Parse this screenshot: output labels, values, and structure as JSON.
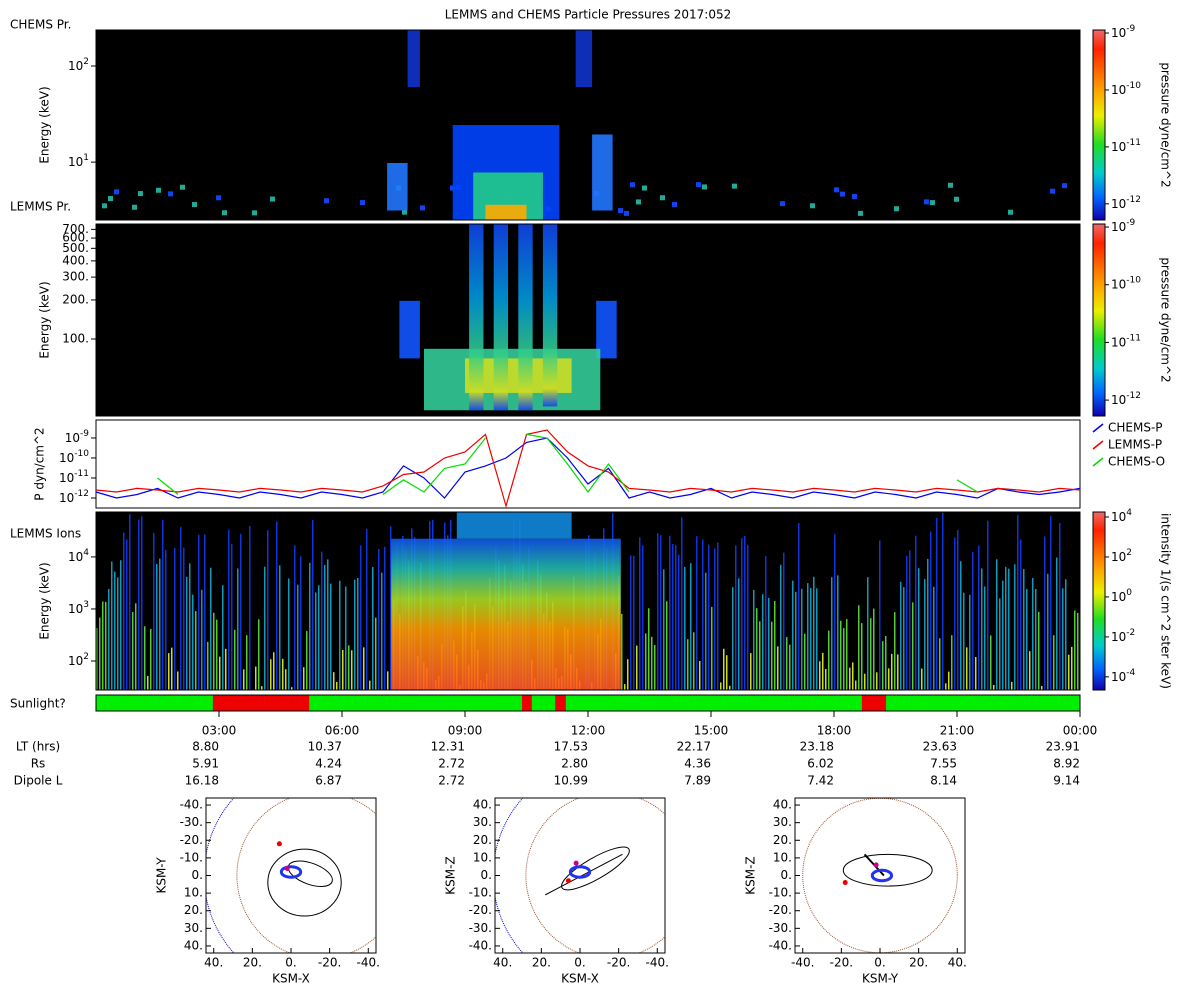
{
  "title": "LEMMS and CHEMS Particle Pressures  2017:052",
  "time_axis": {
    "xlim": [
      0,
      24
    ],
    "xticks": [
      {
        "value": 3,
        "label": "03:00"
      },
      {
        "value": 6,
        "label": "06:00"
      },
      {
        "value": 9,
        "label": "09:00"
      },
      {
        "value": 12,
        "label": "12:00"
      },
      {
        "value": 15,
        "label": "15:00"
      },
      {
        "value": 18,
        "label": "18:00"
      },
      {
        "value": 21,
        "label": "21:00"
      },
      {
        "value": 24,
        "label": "00:00"
      }
    ]
  },
  "ephemeris": [
    {
      "label": "LT (hrs)",
      "values": [
        "8.80",
        "10.37",
        "12.31",
        "17.53",
        "22.17",
        "23.18",
        "23.63",
        "23.91"
      ]
    },
    {
      "label": "Rs",
      "values": [
        "5.91",
        "4.24",
        "2.72",
        "2.80",
        "4.36",
        "6.02",
        "7.55",
        "8.92"
      ]
    },
    {
      "label": "Dipole L",
      "values": [
        "16.18",
        "6.87",
        "2.72",
        "10.99",
        "7.89",
        "7.42",
        "8.14",
        "9.14"
      ]
    }
  ],
  "chart_data": [
    {
      "type": "spectrogram",
      "label": "CHEMS Pr.",
      "ylabel": "Energy (keV)",
      "log_y": true,
      "ylim": [
        2.5,
        237
      ],
      "yticks": [
        {
          "value": 10,
          "base": "10",
          "exp": "1"
        },
        {
          "value": 100,
          "base": "10",
          "exp": "2"
        }
      ],
      "colorbar": {
        "label": "pressure dyne/cm^2",
        "lim": [
          5.2e-13,
          1.13e-09
        ],
        "ticks": [
          {
            "value": 1e-09,
            "base": "10",
            "exp": "-9"
          },
          {
            "value": 1e-10,
            "base": "10",
            "exp": "-10"
          },
          {
            "value": 1e-11,
            "base": "10",
            "exp": "-11"
          },
          {
            "value": 1e-12,
            "base": "10",
            "exp": "-12"
          }
        ]
      }
    },
    {
      "type": "spectrogram",
      "label": "LEMMS Pr.",
      "ylabel": "Energy (keV)",
      "log_y": true,
      "ylim": [
        25.5,
        770
      ],
      "yticks": [
        {
          "value": 700,
          "label": "700."
        },
        {
          "value": 600,
          "label": "600."
        },
        {
          "value": 500,
          "label": "500."
        },
        {
          "value": 400,
          "label": "400."
        },
        {
          "value": 300,
          "label": "300."
        },
        {
          "value": 200,
          "label": "200."
        },
        {
          "value": 100,
          "label": "100."
        }
      ],
      "colorbar": {
        "label": "pressure dyne/cm^2",
        "lim": [
          5.3e-13,
          1.13e-09
        ],
        "ticks": [
          {
            "value": 1e-09,
            "base": "10",
            "exp": "-9"
          },
          {
            "value": 1e-10,
            "base": "10",
            "exp": "-10"
          },
          {
            "value": 1e-11,
            "base": "10",
            "exp": "-11"
          },
          {
            "value": 1e-12,
            "base": "10",
            "exp": "-12"
          }
        ]
      }
    },
    {
      "type": "line",
      "ylabel": "P dyn/cm^2",
      "log_y": true,
      "ylim": [
        3.16e-13,
        7.9e-09
      ],
      "yticks": [
        {
          "value": 1e-09,
          "base": "10",
          "exp": "-9"
        },
        {
          "value": 1e-10,
          "base": "10",
          "exp": "-10"
        },
        {
          "value": 1e-11,
          "base": "10",
          "exp": "-11"
        },
        {
          "value": 1e-12,
          "base": "10",
          "exp": "-12"
        }
      ],
      "x": [
        0,
        0.5,
        1,
        1.5,
        2,
        2.5,
        3,
        3.5,
        4,
        4.5,
        5,
        5.5,
        6,
        6.5,
        7,
        7.5,
        8,
        8.5,
        9,
        9.5,
        10,
        10.5,
        11,
        11.5,
        12,
        12.5,
        13,
        13.5,
        14,
        14.5,
        15,
        15.5,
        16,
        16.5,
        17,
        17.5,
        18,
        18.5,
        19,
        19.5,
        20,
        20.5,
        21,
        21.5,
        22,
        22.5,
        23,
        23.5,
        24
      ],
      "series": [
        {
          "name": "CHEMS-P",
          "color": "#0000ee",
          "values": [
            2e-12,
            1e-12,
            1.5e-12,
            3e-12,
            1e-12,
            2e-12,
            1.5e-12,
            1e-12,
            2e-12,
            1.5e-12,
            1e-12,
            2e-12,
            1.5e-12,
            1e-12,
            2e-12,
            4e-11,
            1e-11,
            1e-12,
            2e-11,
            4e-11,
            1e-10,
            6e-10,
            1e-09,
            1e-10,
            5e-12,
            3e-11,
            1e-12,
            2e-12,
            1e-12,
            1.5e-12,
            3e-12,
            1e-12,
            2e-12,
            1.5e-12,
            1e-12,
            2e-12,
            1.5e-12,
            1e-12,
            2e-12,
            1.5e-12,
            1e-12,
            2e-12,
            1.5e-12,
            1e-12,
            3e-12,
            2e-12,
            1.5e-12,
            2e-12,
            3e-12
          ]
        },
        {
          "name": "LEMMS-P",
          "color": "#ee0000",
          "values": [
            2.5e-12,
            2e-12,
            3e-12,
            2.5e-12,
            2e-12,
            3e-12,
            2.5e-12,
            2e-12,
            3e-12,
            2.5e-12,
            2e-12,
            3e-12,
            2.5e-12,
            2e-12,
            4e-12,
            1.5e-11,
            2e-11,
            1e-10,
            2e-10,
            1.5e-09,
            4e-13,
            1.5e-09,
            2.5e-09,
            2e-10,
            4e-11,
            2e-11,
            3e-12,
            2.5e-12,
            2e-12,
            3e-12,
            2.5e-12,
            2e-12,
            3e-12,
            2.5e-12,
            2e-12,
            3e-12,
            2.5e-12,
            2e-12,
            3e-12,
            2.5e-12,
            2e-12,
            3e-12,
            2.5e-12,
            2e-12,
            3e-12,
            2.5e-12,
            2e-12,
            3e-12,
            2.5e-12
          ]
        },
        {
          "name": "CHEMS-O",
          "color": "#00dd00",
          "values": [
            null,
            null,
            null,
            1e-11,
            1.5e-12,
            null,
            null,
            null,
            null,
            null,
            null,
            null,
            null,
            null,
            1.5e-12,
            8e-12,
            2e-12,
            3e-11,
            5e-11,
            1e-09,
            null,
            1.5e-09,
            1e-09,
            5e-11,
            2e-12,
            5e-11,
            2e-12,
            null,
            null,
            null,
            null,
            null,
            null,
            null,
            null,
            null,
            null,
            null,
            null,
            null,
            null,
            null,
            8e-12,
            2e-12,
            null,
            null,
            null,
            null,
            null
          ]
        }
      ]
    },
    {
      "type": "spectrogram",
      "label": "LEMMS Ions",
      "ylabel": "Energy (keV)",
      "log_y": true,
      "ylim": [
        27.7,
        73000
      ],
      "yticks": [
        {
          "value": 100,
          "base": "10",
          "exp": "2"
        },
        {
          "value": 1000,
          "base": "10",
          "exp": "3"
        },
        {
          "value": 10000,
          "base": "10",
          "exp": "4"
        }
      ],
      "colorbar": {
        "label": "intensity 1/(s cm^2 ster keV)",
        "lim": [
          2.2e-05,
          17800
        ],
        "ticks": [
          {
            "value": 10000,
            "base": "10",
            "exp": "4"
          },
          {
            "value": 100,
            "base": "10",
            "exp": "2"
          },
          {
            "value": 1,
            "base": "10",
            "exp": "0"
          },
          {
            "value": 0.01,
            "base": "10",
            "exp": "-2"
          },
          {
            "value": 0.0001,
            "base": "10",
            "exp": "-4"
          }
        ]
      }
    },
    {
      "type": "timeline",
      "label": "Sunlight?",
      "color": "#00ee00",
      "segments": [
        {
          "start": 2.85,
          "end": 5.2,
          "color": "#ee0000"
        },
        {
          "start": 10.39,
          "end": 10.63,
          "color": "#ee0000"
        },
        {
          "start": 11.2,
          "end": 11.46,
          "color": "#ee0000"
        },
        {
          "start": 18.68,
          "end": 19.27,
          "color": "#ee0000"
        }
      ]
    },
    {
      "type": "orbit",
      "xlabel": "KSM-X",
      "ylabel": "KSM-Y",
      "xlim": [
        44,
        -44
      ],
      "ylim": [
        44,
        -44
      ],
      "xticks": [
        {
          "value": 40,
          "label": "40."
        },
        {
          "value": 20,
          "label": "20."
        },
        {
          "value": 0,
          "label": "0."
        },
        {
          "value": -20,
          "label": "-20."
        },
        {
          "value": -40,
          "label": "-40."
        }
      ],
      "yticks": [
        {
          "value": -40,
          "label": "-40."
        },
        {
          "value": -30,
          "label": "-30."
        },
        {
          "value": -20,
          "label": "-20."
        },
        {
          "value": -10,
          "label": "-10."
        },
        {
          "value": 0,
          "label": "0."
        },
        {
          "value": 10,
          "label": "10."
        },
        {
          "value": 20,
          "label": "20."
        },
        {
          "value": 30,
          "label": "30."
        },
        {
          "value": 40,
          "label": "40."
        }
      ]
    },
    {
      "type": "orbit",
      "xlabel": "KSM-X",
      "ylabel": "KSM-Z",
      "xlim": [
        44,
        -44
      ],
      "ylim": [
        -44,
        44
      ],
      "xticks": [
        {
          "value": 40,
          "label": "40."
        },
        {
          "value": 20,
          "label": "20."
        },
        {
          "value": 0,
          "label": "0."
        },
        {
          "value": -20,
          "label": "-20."
        },
        {
          "value": -40,
          "label": "-40."
        }
      ],
      "yticks": [
        {
          "value": 40,
          "label": "40."
        },
        {
          "value": 30,
          "label": "30."
        },
        {
          "value": 20,
          "label": "20."
        },
        {
          "value": 10,
          "label": "10."
        },
        {
          "value": 0,
          "label": "0."
        },
        {
          "value": -10,
          "label": "-10."
        },
        {
          "value": -20,
          "label": "-20."
        },
        {
          "value": -30,
          "label": "-30."
        },
        {
          "value": -40,
          "label": "-40."
        }
      ]
    },
    {
      "type": "orbit",
      "xlabel": "KSM-Y",
      "ylabel": "KSM-Z",
      "xlim": [
        -44,
        44
      ],
      "ylim": [
        -44,
        44
      ],
      "xticks": [
        {
          "value": -40,
          "label": "-40."
        },
        {
          "value": -20,
          "label": "-20."
        },
        {
          "value": 0,
          "label": "0."
        },
        {
          "value": 20,
          "label": "20."
        },
        {
          "value": 40,
          "label": "40."
        }
      ],
      "yticks": [
        {
          "value": 40,
          "label": "40."
        },
        {
          "value": 30,
          "label": "30."
        },
        {
          "value": 20,
          "label": "20."
        },
        {
          "value": 10,
          "label": "10."
        },
        {
          "value": 0,
          "label": "0."
        },
        {
          "value": -10,
          "label": "-10."
        },
        {
          "value": -20,
          "label": "-20."
        },
        {
          "value": -30,
          "label": "-30."
        },
        {
          "value": -40,
          "label": "-40."
        }
      ]
    }
  ]
}
